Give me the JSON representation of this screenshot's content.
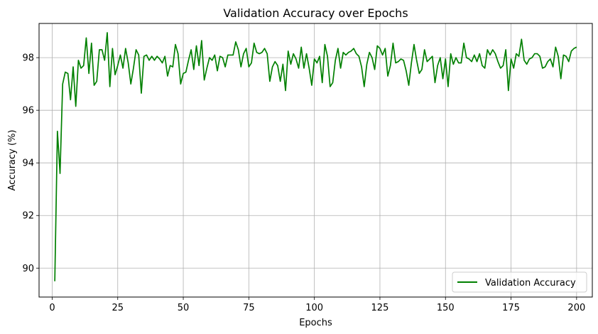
{
  "chart_data": {
    "type": "line",
    "title": "Validation Accuracy over Epochs",
    "xlabel": "Epochs",
    "ylabel": "Accuracy (%)",
    "xlim": [
      -5,
      206
    ],
    "ylim": [
      88.9,
      99.3
    ],
    "xticks": [
      0,
      25,
      50,
      75,
      100,
      125,
      150,
      175,
      200
    ],
    "yticks": [
      90,
      92,
      94,
      96,
      98
    ],
    "grid": true,
    "legend_position": "lower-right",
    "series": [
      {
        "name": "Validation Accuracy",
        "color": "#008000",
        "x": [
          1,
          2,
          3,
          4,
          5,
          6,
          7,
          8,
          9,
          10,
          11,
          12,
          13,
          14,
          15,
          16,
          17,
          18,
          19,
          20,
          21,
          22,
          23,
          24,
          25,
          26,
          27,
          28,
          29,
          30,
          31,
          32,
          33,
          34,
          35,
          36,
          37,
          38,
          39,
          40,
          41,
          42,
          43,
          44,
          45,
          46,
          47,
          48,
          49,
          50,
          51,
          52,
          53,
          54,
          55,
          56,
          57,
          58,
          59,
          60,
          61,
          62,
          63,
          64,
          65,
          66,
          67,
          68,
          69,
          70,
          71,
          72,
          73,
          74,
          75,
          76,
          77,
          78,
          79,
          80,
          81,
          82,
          83,
          84,
          85,
          86,
          87,
          88,
          89,
          90,
          91,
          92,
          93,
          94,
          95,
          96,
          97,
          98,
          99,
          100,
          101,
          102,
          103,
          104,
          105,
          106,
          107,
          108,
          109,
          110,
          111,
          112,
          113,
          114,
          115,
          116,
          117,
          118,
          119,
          120,
          121,
          122,
          123,
          124,
          125,
          126,
          127,
          128,
          129,
          130,
          131,
          132,
          133,
          134,
          135,
          136,
          137,
          138,
          139,
          140,
          141,
          142,
          143,
          144,
          145,
          146,
          147,
          148,
          149,
          150,
          151,
          152,
          153,
          154,
          155,
          156,
          157,
          158,
          159,
          160,
          161,
          162,
          163,
          164,
          165,
          166,
          167,
          168,
          169,
          170,
          171,
          172,
          173,
          174,
          175,
          176,
          177,
          178,
          179,
          180,
          181,
          182,
          183,
          184,
          185,
          186,
          187,
          188,
          189,
          190,
          191,
          192,
          193,
          194,
          195,
          196,
          197,
          198,
          199,
          200
        ],
        "values": [
          89.5,
          95.2,
          93.6,
          97.0,
          97.45,
          97.4,
          96.4,
          97.65,
          96.15,
          97.9,
          97.6,
          97.7,
          98.75,
          97.4,
          98.55,
          96.95,
          97.1,
          98.3,
          98.3,
          97.9,
          98.95,
          96.9,
          98.35,
          97.35,
          97.7,
          98.1,
          97.6,
          98.35,
          97.8,
          97.0,
          97.6,
          98.3,
          98.1,
          96.65,
          98.05,
          98.1,
          97.9,
          98.05,
          97.9,
          98.05,
          97.95,
          97.8,
          98.05,
          97.3,
          97.7,
          97.65,
          98.5,
          98.15,
          97.0,
          97.4,
          97.45,
          97.9,
          98.3,
          97.55,
          98.45,
          97.7,
          98.65,
          97.15,
          97.6,
          98.0,
          97.9,
          98.1,
          97.5,
          98.05,
          98.0,
          97.65,
          98.1,
          98.1,
          98.1,
          98.6,
          98.3,
          97.65,
          98.15,
          98.35,
          97.65,
          97.8,
          98.55,
          98.2,
          98.15,
          98.2,
          98.35,
          98.15,
          97.1,
          97.65,
          97.85,
          97.7,
          97.1,
          97.75,
          96.75,
          98.25,
          97.75,
          98.15,
          97.95,
          97.6,
          98.4,
          97.6,
          98.15,
          97.6,
          96.95,
          97.95,
          97.8,
          98.05,
          97.05,
          98.5,
          98.05,
          96.9,
          97.05,
          97.9,
          98.35,
          97.6,
          98.2,
          98.1,
          98.2,
          98.25,
          98.35,
          98.15,
          98.05,
          97.65,
          96.9,
          97.75,
          98.2,
          98.0,
          97.55,
          98.45,
          98.35,
          98.1,
          98.35,
          97.3,
          97.7,
          98.55,
          97.8,
          97.85,
          97.95,
          97.9,
          97.5,
          96.95,
          97.8,
          98.5,
          97.9,
          97.4,
          97.55,
          98.3,
          97.85,
          97.95,
          98.05,
          97.05,
          97.7,
          98.0,
          97.2,
          97.95,
          96.9,
          98.15,
          97.75,
          98.0,
          97.8,
          97.8,
          98.55,
          98.0,
          97.95,
          97.85,
          98.1,
          97.85,
          98.15,
          97.7,
          97.6,
          98.3,
          98.1,
          98.3,
          98.15,
          97.85,
          97.6,
          97.7,
          98.3,
          96.75,
          97.95,
          97.6,
          98.15,
          98.05,
          98.7,
          97.9,
          97.75,
          97.95,
          98.0,
          98.15,
          98.15,
          98.05,
          97.6,
          97.65,
          97.85,
          97.95,
          97.65,
          98.4,
          98.05,
          97.2,
          98.1,
          98.05,
          97.85,
          98.25,
          98.35,
          98.4
        ]
      }
    ]
  }
}
